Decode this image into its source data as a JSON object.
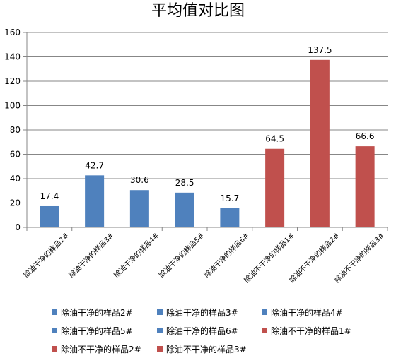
{
  "chart_data": {
    "type": "bar",
    "title": "平均值对比图",
    "xlabel": "",
    "ylabel": "",
    "ylim": [
      0,
      160
    ],
    "yticks": [
      0,
      20,
      40,
      60,
      80,
      100,
      120,
      140,
      160
    ],
    "grid": true,
    "legend": "bottom",
    "categories": [
      "除油干净的样品2#",
      "除油干净的样品3#",
      "除油干净的样品4#",
      "除油干净的样品5#",
      "除油干净的样品6#",
      "除油不干净的样品1#",
      "除油不干净的样品2#",
      "除油不干净的样品3#"
    ],
    "series": [
      {
        "name": "除油干净的样品2#",
        "values": [
          17.4,
          null,
          null,
          null,
          null,
          null,
          null,
          null
        ],
        "label": "17.4",
        "color": "#4f81bd"
      },
      {
        "name": "除油干净的样品3#",
        "values": [
          null,
          42.7,
          null,
          null,
          null,
          null,
          null,
          null
        ],
        "label": "42.7",
        "color": "#4f81bd"
      },
      {
        "name": "除油干净的样品4#",
        "values": [
          null,
          null,
          30.6,
          null,
          null,
          null,
          null,
          null
        ],
        "label": "30.6",
        "color": "#4f81bd"
      },
      {
        "name": "除油干净的样品5#",
        "values": [
          null,
          null,
          null,
          28.5,
          null,
          null,
          null,
          null
        ],
        "label": "28.5",
        "color": "#4f81bd"
      },
      {
        "name": "除油干净的样品6#",
        "values": [
          null,
          null,
          null,
          null,
          15.7,
          null,
          null,
          null
        ],
        "label": "15.7",
        "color": "#4f81bd"
      },
      {
        "name": "除油不干净的样品1#",
        "values": [
          null,
          null,
          null,
          null,
          null,
          64.5,
          null,
          null
        ],
        "label": "64.5",
        "color": "#c0504d"
      },
      {
        "name": "除油不干净的样品2#",
        "values": [
          null,
          null,
          null,
          null,
          null,
          null,
          137.5,
          null
        ],
        "label": "137.5",
        "color": "#c0504d"
      },
      {
        "name": "除油不干净的样品3#",
        "values": [
          null,
          null,
          null,
          null,
          null,
          null,
          null,
          66.6
        ],
        "label": "66.6",
        "color": "#c0504d"
      }
    ]
  }
}
